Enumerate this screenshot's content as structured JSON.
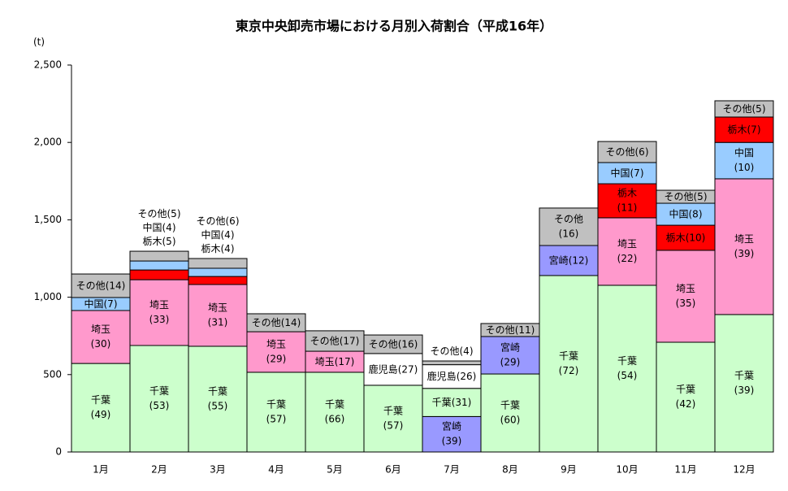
{
  "chart_data": {
    "type": "stacked-bar",
    "title": "東京中央卸売市場における月別入荷割合（平成16年）",
    "y_unit": "(t)",
    "ylim": [
      0,
      2500
    ],
    "yticks": [
      0,
      500,
      {
        "value": 1000,
        "label": "1,000"
      },
      {
        "value": 1500,
        "label": "1,500"
      },
      {
        "value": 2000,
        "label": "2,000"
      },
      {
        "value": 2500,
        "label": "2,500"
      }
    ],
    "categories": [
      "1月",
      "2月",
      "3月",
      "4月",
      "5月",
      "6月",
      "7月",
      "8月",
      "9月",
      "10月",
      "11月",
      "12月"
    ],
    "stacks": [
      [
        {
          "name": "千葉",
          "label": "(49)",
          "value": 572,
          "color": "#ccffcc"
        },
        {
          "name": "埼玉",
          "label": "(30)",
          "value": 342,
          "color": "#ff99cc"
        },
        {
          "name": "中国",
          "label": "(7)",
          "value": 84,
          "color": "#99ccff"
        },
        {
          "name": "その他",
          "label": "(14)",
          "value": 152,
          "color": "#c0c0c0"
        }
      ],
      [
        {
          "name": "千葉",
          "label": "(53)",
          "value": 688,
          "color": "#ccffcc"
        },
        {
          "name": "埼玉",
          "label": "(33)",
          "value": 425,
          "color": "#ff99cc"
        },
        {
          "name": "栃木",
          "label": "(5)",
          "value": 63,
          "color": "#ff0000"
        },
        {
          "name": "中国",
          "label": "(4)",
          "value": 58,
          "color": "#99ccff"
        },
        {
          "name": "その他",
          "label": "(5)",
          "value": 63,
          "color": "#c0c0c0"
        }
      ],
      [
        {
          "name": "千葉",
          "label": "(55)",
          "value": 683,
          "color": "#ccffcc"
        },
        {
          "name": "埼玉",
          "label": "(31)",
          "value": 399,
          "color": "#ff99cc"
        },
        {
          "name": "栃木",
          "label": "(4)",
          "value": 52,
          "color": "#ff0000"
        },
        {
          "name": "中国",
          "label": "(4)",
          "value": 53,
          "color": "#99ccff"
        },
        {
          "name": "その他",
          "label": "(6)",
          "value": 63,
          "color": "#c0c0c0"
        }
      ],
      [
        {
          "name": "千葉",
          "label": "(57)",
          "value": 515,
          "color": "#ccffcc"
        },
        {
          "name": "埼玉",
          "label": "(29)",
          "value": 262,
          "color": "#ff99cc"
        },
        {
          "name": "その他",
          "label": "(14)",
          "value": 116,
          "color": "#c0c0c0"
        }
      ],
      [
        {
          "name": "千葉",
          "label": "(66)",
          "value": 515,
          "color": "#ccffcc"
        },
        {
          "name": "埼玉",
          "label": "(17)",
          "value": 136,
          "color": "#ff99cc"
        },
        {
          "name": "その他",
          "label": "(17)",
          "value": 132,
          "color": "#c0c0c0"
        }
      ],
      [
        {
          "name": "千葉",
          "label": "(57)",
          "value": 431,
          "color": "#ccffcc"
        },
        {
          "name": "鹿児島",
          "label": "(27)",
          "value": 205,
          "color": "#ffffff"
        },
        {
          "name": "その他",
          "label": "(16)",
          "value": 120,
          "color": "#c0c0c0"
        }
      ],
      [
        {
          "name": "宮崎",
          "label": "(39)",
          "value": 229,
          "color": "#9999ff"
        },
        {
          "name": "千葉",
          "label": "(31)",
          "value": 182,
          "color": "#ccffcc"
        },
        {
          "name": "鹿児島",
          "label": "(26)",
          "value": 153,
          "color": "#ffffff"
        },
        {
          "name": "その他",
          "label": "(4)",
          "value": 24,
          "color": "#c0c0c0"
        }
      ],
      [
        {
          "name": "千葉",
          "label": "(60)",
          "value": 504,
          "color": "#ccffcc"
        },
        {
          "name": "宮崎",
          "label": "(29)",
          "value": 242,
          "color": "#9999ff"
        },
        {
          "name": "その他",
          "label": "(11)",
          "value": 84,
          "color": "#c0c0c0"
        }
      ],
      [
        {
          "name": "千葉",
          "label": "(72)",
          "value": 1140,
          "color": "#ccffcc"
        },
        {
          "name": "宮崎",
          "label": "(12)",
          "value": 194,
          "color": "#9999ff"
        },
        {
          "name": "その他",
          "label": "(16)",
          "value": 242,
          "color": "#c0c0c0"
        }
      ],
      [
        {
          "name": "千葉",
          "label": "(54)",
          "value": 1077,
          "color": "#ccffcc"
        },
        {
          "name": "埼玉",
          "label": "(22)",
          "value": 436,
          "color": "#ff99cc"
        },
        {
          "name": "栃木",
          "label": "(11)",
          "value": 220,
          "color": "#ff0000"
        },
        {
          "name": "中国",
          "label": "(7)",
          "value": 137,
          "color": "#99ccff"
        },
        {
          "name": "その他",
          "label": "(6)",
          "value": 136,
          "color": "#c0c0c0"
        }
      ],
      [
        {
          "name": "千葉",
          "label": "(42)",
          "value": 709,
          "color": "#ccffcc"
        },
        {
          "name": "埼玉",
          "label": "(35)",
          "value": 594,
          "color": "#ff99cc"
        },
        {
          "name": "栃木",
          "label": "(10)",
          "value": 162,
          "color": "#ff0000"
        },
        {
          "name": "中国",
          "label": "(8)",
          "value": 142,
          "color": "#99ccff"
        },
        {
          "name": "その他",
          "label": "(5)",
          "value": 84,
          "color": "#c0c0c0"
        }
      ],
      [
        {
          "name": "千葉",
          "label": "(39)",
          "value": 888,
          "color": "#ccffcc"
        },
        {
          "name": "埼玉",
          "label": "(39)",
          "value": 877,
          "color": "#ff99cc"
        },
        {
          "name": "中国",
          "label": "(10)",
          "value": 235,
          "color": "#99ccff"
        },
        {
          "name": "栃木",
          "label": "(7)",
          "value": 164,
          "color": "#ff0000"
        },
        {
          "name": "その他",
          "label": "(5)",
          "value": 105,
          "color": "#c0c0c0"
        }
      ]
    ]
  }
}
